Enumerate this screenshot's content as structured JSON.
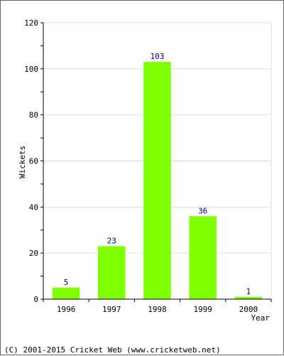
{
  "chart_data": {
    "type": "bar",
    "categories": [
      "1996",
      "1997",
      "1998",
      "1999",
      "2000"
    ],
    "values": [
      5,
      23,
      103,
      36,
      1
    ],
    "title": "",
    "xlabel": "Year",
    "ylabel": "Wickets",
    "ylim": [
      0,
      120
    ],
    "yticks": [
      0,
      20,
      40,
      60,
      80,
      100,
      120
    ],
    "grid": true,
    "bar_color": "#80ff00",
    "label_color": "#000080"
  },
  "footer": {
    "copyright": "(C) 2001-2015 Cricket Web (www.cricketweb.net)"
  }
}
